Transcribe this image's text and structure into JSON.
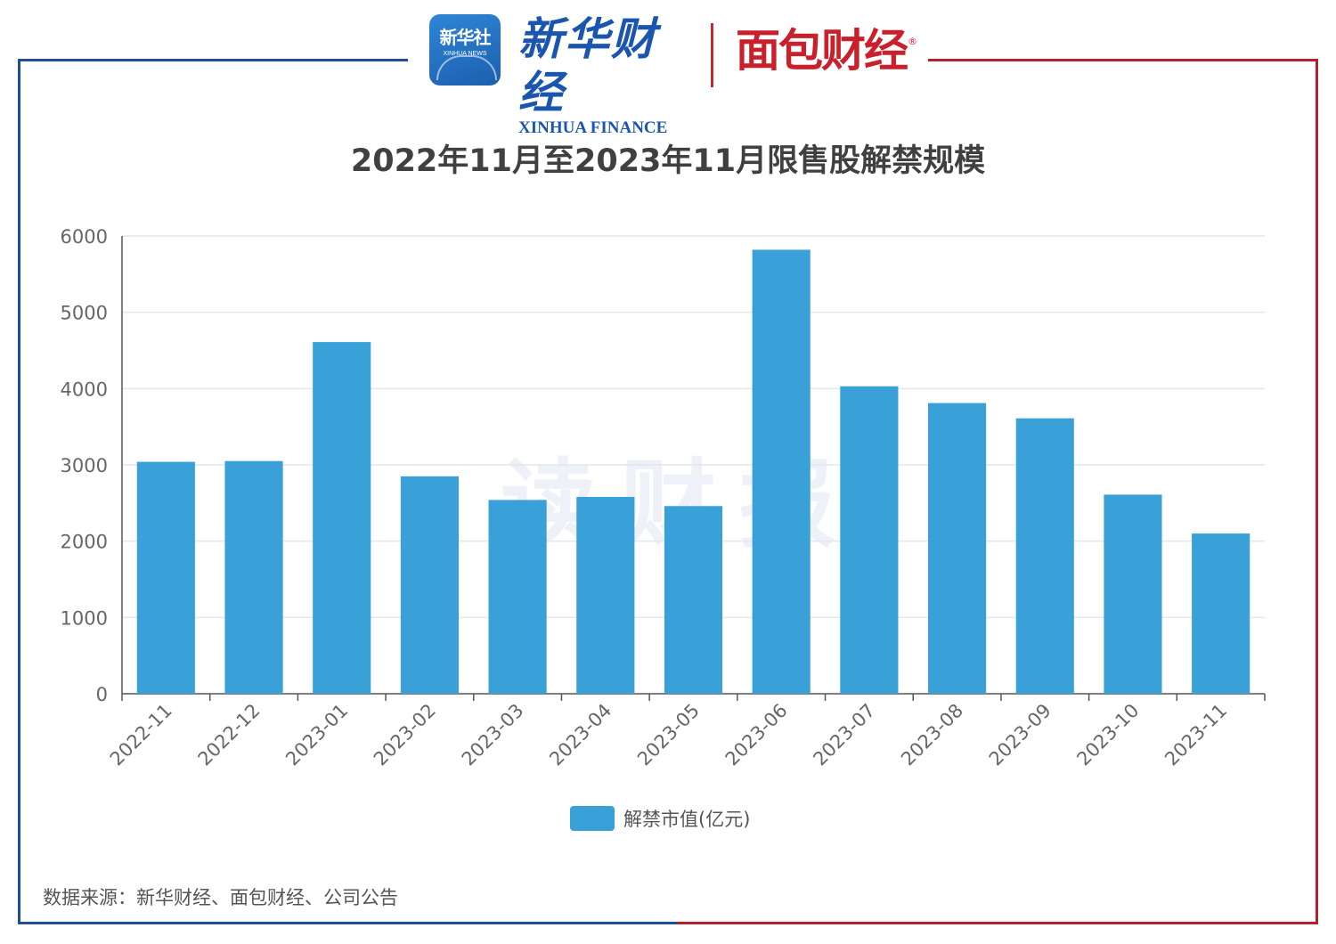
{
  "header": {
    "xinhua_logo_cn": "新华社",
    "xinhua_logo_en": "XINHUA NEWS",
    "finance_brand_cn": "新华财经",
    "finance_brand_en": "XINHUA FINANCE",
    "partner_brand": "面包财经",
    "registered_mark": "®"
  },
  "watermark": "读财报",
  "source_note": "数据来源：新华财经、面包财经、公司公告",
  "colors": {
    "bar": "#3aa0d8",
    "frame_left": "#1f4e9a",
    "frame_right": "#b51f2e"
  },
  "chart_data": {
    "type": "bar",
    "title": "2022年11月至2023年11月限售股解禁规模",
    "categories": [
      "2022-11",
      "2022-12",
      "2023-01",
      "2023-02",
      "2023-03",
      "2023-04",
      "2023-05",
      "2023-06",
      "2023-07",
      "2023-08",
      "2023-09",
      "2023-10",
      "2023-11"
    ],
    "series": [
      {
        "name": "解禁市值(亿元)",
        "values": [
          3040,
          3050,
          4610,
          2850,
          2540,
          2580,
          2460,
          5820,
          4030,
          3810,
          3610,
          2610,
          2100
        ]
      }
    ],
    "yticks": [
      0,
      1000,
      2000,
      3000,
      4000,
      5000,
      6000
    ],
    "ylim": [
      0,
      6000
    ],
    "grid": true,
    "legend_position": "bottom-center",
    "xtick_rotation": "-45deg"
  }
}
